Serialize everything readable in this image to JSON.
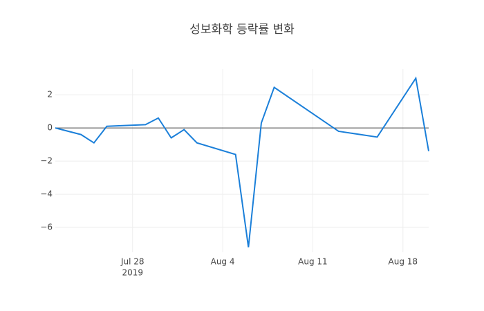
{
  "chart_data": {
    "type": "line",
    "title": "성보화학 등락률 변화",
    "x": [
      "2019-07-22",
      "2019-07-24",
      "2019-07-25",
      "2019-07-26",
      "2019-07-29",
      "2019-07-30",
      "2019-07-31",
      "2019-08-01",
      "2019-08-02",
      "2019-08-05",
      "2019-08-06",
      "2019-08-07",
      "2019-08-08",
      "2019-08-13",
      "2019-08-16",
      "2019-08-19",
      "2019-08-20"
    ],
    "series": [
      {
        "color": "#1a7fd9",
        "values": [
          0,
          -0.4,
          -0.9,
          0.1,
          0.2,
          0.6,
          -0.6,
          -0.1,
          -0.9,
          -1.6,
          -7.2,
          0.3,
          2.45,
          -0.2,
          -0.55,
          3.0,
          -1.4
        ]
      }
    ],
    "xlim": [
      "2019-07-22",
      "2019-08-20"
    ],
    "xticks": [
      {
        "value": "2019-07-28",
        "label": "Jul 28"
      },
      {
        "value": "2019-08-04",
        "label": "Aug 4"
      },
      {
        "value": "2019-08-11",
        "label": "Aug 11"
      },
      {
        "value": "2019-08-18",
        "label": "Aug 18"
      }
    ],
    "x_year_label": "2019",
    "ylim": [
      -7.5,
      3.55
    ],
    "yticks": [
      {
        "value": 2,
        "label": "2"
      },
      {
        "value": 0,
        "label": "0"
      },
      {
        "value": -2,
        "label": "−2"
      },
      {
        "value": -4,
        "label": "−4"
      },
      {
        "value": -6,
        "label": "−6"
      }
    ],
    "grid": true
  }
}
